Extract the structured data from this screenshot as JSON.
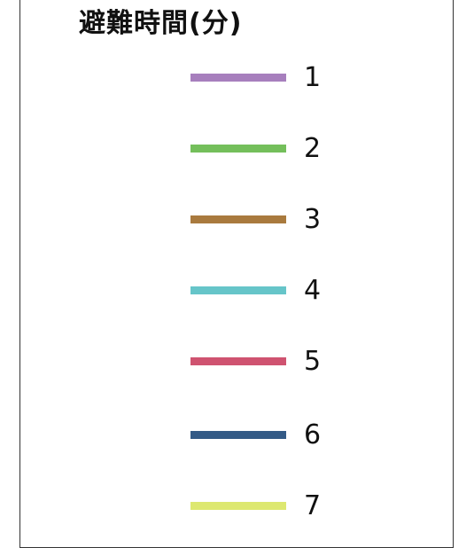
{
  "legend": {
    "title": "避難時間(分)",
    "items": [
      {
        "label": "1",
        "color": "#a77fbd"
      },
      {
        "label": "2",
        "color": "#74bf5b"
      },
      {
        "label": "3",
        "color": "#a97a3e"
      },
      {
        "label": "4",
        "color": "#66c5c9"
      },
      {
        "label": "5",
        "color": "#cf5370"
      },
      {
        "label": "6",
        "color": "#335a86"
      },
      {
        "label": "7",
        "color": "#dde870"
      }
    ]
  }
}
